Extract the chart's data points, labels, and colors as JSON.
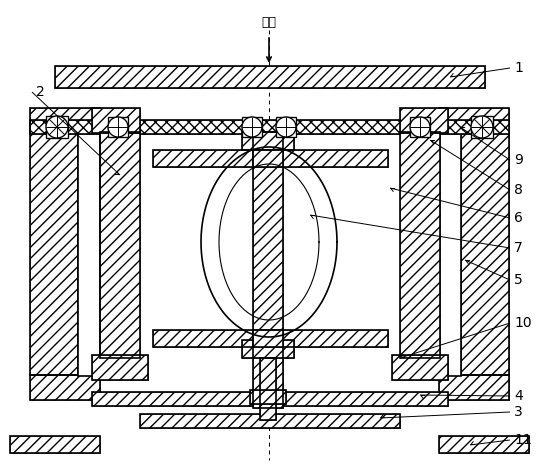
{
  "bg_color": "#ffffff",
  "line_color": "#000000",
  "load_label": "载荷",
  "font_size_label": 9,
  "font_size_num": 10,
  "lw_main": 1.2,
  "lw_hatch": 0.4,
  "lw_annot": 0.7
}
